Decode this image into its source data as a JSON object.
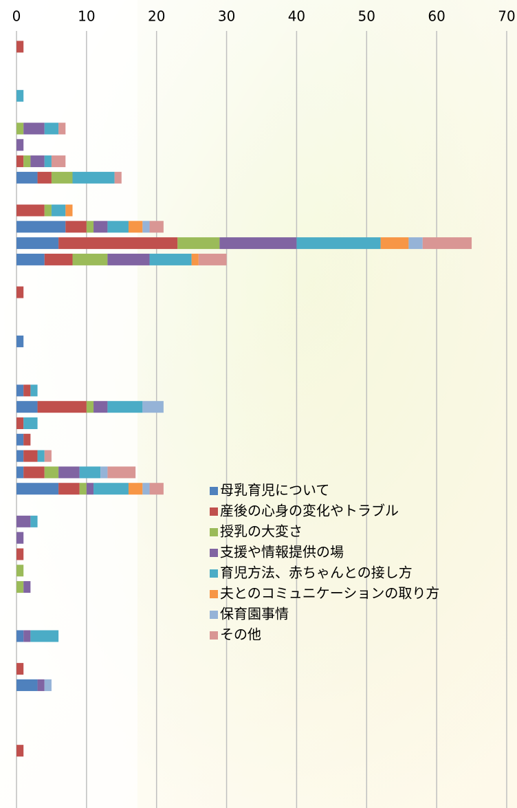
{
  "chart_data": {
    "type": "stacked-barh",
    "categories": [
      null,
      null,
      null,
      null,
      null,
      null,
      null,
      null,
      null,
      null,
      null,
      null,
      null,
      null,
      null,
      null,
      null,
      null,
      null,
      null,
      null,
      null,
      null,
      null,
      null,
      null,
      null,
      null,
      null,
      null,
      null,
      null,
      null,
      null,
      null,
      null,
      null,
      null,
      null,
      null,
      null,
      null,
      null,
      null,
      null,
      null,
      null
    ],
    "series": [
      {
        "name": "母乳育児について",
        "color": "#4f81bd",
        "values": [
          null,
          null,
          null,
          null,
          null,
          null,
          null,
          null,
          3,
          null,
          null,
          7,
          6,
          4,
          null,
          null,
          null,
          null,
          1,
          null,
          null,
          1,
          3,
          null,
          1,
          1,
          1,
          6,
          null,
          null,
          null,
          null,
          null,
          null,
          null,
          null,
          1,
          null,
          null,
          3,
          null,
          null,
          null,
          null,
          null,
          null,
          null
        ]
      },
      {
        "name": "産後の心身の変化やトラブル",
        "color": "#c0504d",
        "values": [
          1,
          null,
          null,
          null,
          null,
          null,
          null,
          1,
          2,
          null,
          4,
          3,
          17,
          4,
          null,
          1,
          null,
          null,
          null,
          null,
          null,
          1,
          7,
          1,
          1,
          2,
          3,
          3,
          null,
          null,
          null,
          1,
          null,
          null,
          null,
          null,
          null,
          null,
          1,
          null,
          null,
          null,
          null,
          1,
          null,
          null,
          null
        ]
      },
      {
        "name": "授乳の大変さ",
        "color": "#9bbb59",
        "values": [
          null,
          null,
          null,
          null,
          null,
          1,
          null,
          1,
          3,
          null,
          1,
          1,
          6,
          5,
          null,
          null,
          null,
          null,
          null,
          null,
          null,
          null,
          1,
          null,
          null,
          null,
          2,
          1,
          null,
          null,
          null,
          null,
          1,
          1,
          null,
          null,
          null,
          null,
          null,
          null,
          null,
          null,
          null,
          null,
          null,
          null,
          null
        ]
      },
      {
        "name": "支援や情報提供の場",
        "color": "#8064a2",
        "values": [
          null,
          null,
          null,
          null,
          null,
          3,
          1,
          2,
          null,
          null,
          null,
          2,
          11,
          6,
          null,
          null,
          null,
          null,
          null,
          null,
          null,
          null,
          2,
          null,
          null,
          null,
          3,
          1,
          null,
          2,
          1,
          null,
          null,
          1,
          null,
          null,
          1,
          null,
          null,
          1,
          null,
          null,
          null,
          null,
          null,
          null,
          null
        ]
      },
      {
        "name": "育児方法、赤ちゃんとの接し方",
        "color": "#4bacc6",
        "values": [
          null,
          null,
          null,
          1,
          null,
          2,
          null,
          1,
          6,
          null,
          2,
          3,
          12,
          6,
          null,
          null,
          null,
          null,
          null,
          null,
          null,
          1,
          5,
          2,
          null,
          1,
          3,
          5,
          null,
          1,
          null,
          null,
          null,
          null,
          null,
          null,
          4,
          null,
          null,
          null,
          null,
          null,
          null,
          null,
          null,
          null,
          null
        ]
      },
      {
        "name": "夫とのコミュニケーションの取り方",
        "color": "#f79646",
        "values": [
          null,
          null,
          null,
          null,
          null,
          null,
          null,
          null,
          null,
          null,
          1,
          2,
          4,
          1,
          null,
          null,
          null,
          null,
          null,
          null,
          null,
          null,
          null,
          null,
          null,
          null,
          null,
          2,
          null,
          null,
          null,
          null,
          null,
          null,
          null,
          null,
          null,
          null,
          null,
          null,
          null,
          null,
          null,
          null,
          null,
          null,
          null
        ]
      },
      {
        "name": "保育園事情",
        "color": "#95b3d7",
        "values": [
          null,
          null,
          null,
          null,
          null,
          null,
          null,
          null,
          null,
          null,
          null,
          1,
          2,
          null,
          null,
          null,
          null,
          null,
          null,
          null,
          null,
          null,
          3,
          null,
          null,
          null,
          1,
          1,
          null,
          null,
          null,
          null,
          null,
          null,
          null,
          null,
          null,
          null,
          null,
          1,
          null,
          null,
          null,
          null,
          null,
          null,
          null
        ]
      },
      {
        "name": "その他",
        "color": "#d99694",
        "values": [
          null,
          null,
          null,
          null,
          null,
          1,
          null,
          2,
          1,
          null,
          null,
          2,
          7,
          4,
          null,
          null,
          null,
          null,
          null,
          null,
          null,
          null,
          null,
          null,
          null,
          1,
          4,
          2,
          null,
          null,
          null,
          null,
          null,
          null,
          null,
          null,
          null,
          null,
          null,
          null,
          null,
          null,
          null,
          null,
          null,
          null,
          null
        ]
      }
    ],
    "xlim": [
      0,
      70
    ],
    "xticks": [
      0,
      10,
      20,
      30,
      40,
      50,
      60,
      70
    ],
    "grid": true,
    "legend": "lower-center"
  }
}
